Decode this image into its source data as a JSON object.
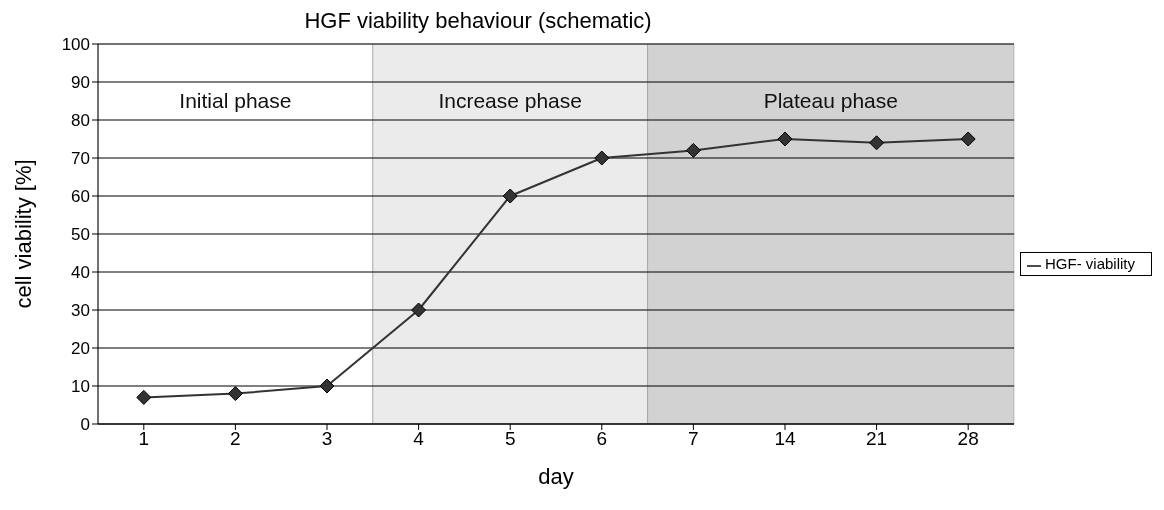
{
  "chart_data": {
    "type": "line",
    "title": "HGF viability behaviour (schematic)",
    "xlabel": "day",
    "ylabel": "cell viability [%]",
    "categories": [
      "1",
      "2",
      "3",
      "4",
      "5",
      "6",
      "7",
      "14",
      "21",
      "28"
    ],
    "series": [
      {
        "name": "HGF- viability",
        "color": "#333333",
        "values": [
          7,
          8,
          10,
          30,
          60,
          70,
          72,
          75,
          74,
          75
        ]
      }
    ],
    "ylim": [
      0,
      100
    ],
    "yticks": [
      0,
      10,
      20,
      30,
      40,
      50,
      60,
      70,
      80,
      90,
      100
    ],
    "grid": "y",
    "legend": "right",
    "marker": "diamond",
    "line_style": "solid",
    "bands": [
      {
        "axis": "x",
        "from": "1",
        "to": "3",
        "label": "Initial phase",
        "color": "#ffffff"
      },
      {
        "axis": "x",
        "from": "4",
        "to": "6",
        "label": "Increase phase",
        "color": "#ebebeb"
      },
      {
        "axis": "x",
        "from": "7",
        "to": "28",
        "label": "Plateau phase",
        "color": "#d2d2d2"
      }
    ]
  }
}
